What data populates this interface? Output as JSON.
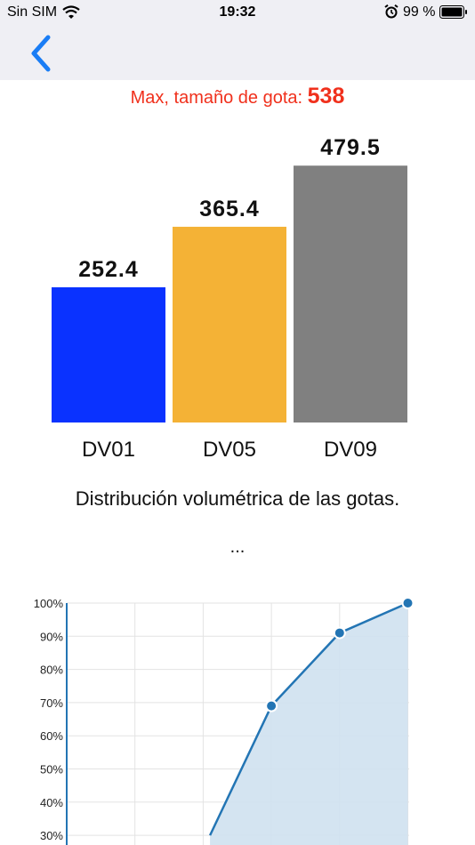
{
  "status_bar": {
    "carrier": "Sin SIM",
    "time": "19:32",
    "battery_percent": "99 %"
  },
  "nav": {
    "back_icon": "chevron-left-icon"
  },
  "colors": {
    "accent": "#1a7df5",
    "max_text": "#f0301c",
    "bar_colors": [
      "#0a32ff",
      "#f4b236",
      "#808080"
    ],
    "area_fill": "#cfe1ef",
    "area_line": "#2375b4"
  },
  "header": {
    "max_label": "Max, tamaño de gota:",
    "max_value": "538"
  },
  "bar_chart": {
    "type": "bar",
    "categories": [
      "DV01",
      "DV05",
      "DV09"
    ],
    "values": [
      252.4,
      365.4,
      479.5
    ],
    "value_labels": [
      "252.4",
      "365.4",
      "479.5"
    ],
    "ylim": [
      0,
      538
    ]
  },
  "subtitle": "Distribución volumétrica de las gotas.",
  "ellipsis": "...",
  "chart_data": {
    "type": "area",
    "y_tick_labels": [
      "100%",
      "90%",
      "80%",
      "70%",
      "60%",
      "50%",
      "40%",
      "30%"
    ],
    "y_ticks": [
      100,
      90,
      80,
      70,
      60,
      50,
      40,
      30
    ],
    "ylim": [
      30,
      100
    ],
    "grid": true,
    "x": [
      2.1,
      3,
      4,
      5
    ],
    "values": [
      30,
      69,
      91,
      100
    ]
  }
}
